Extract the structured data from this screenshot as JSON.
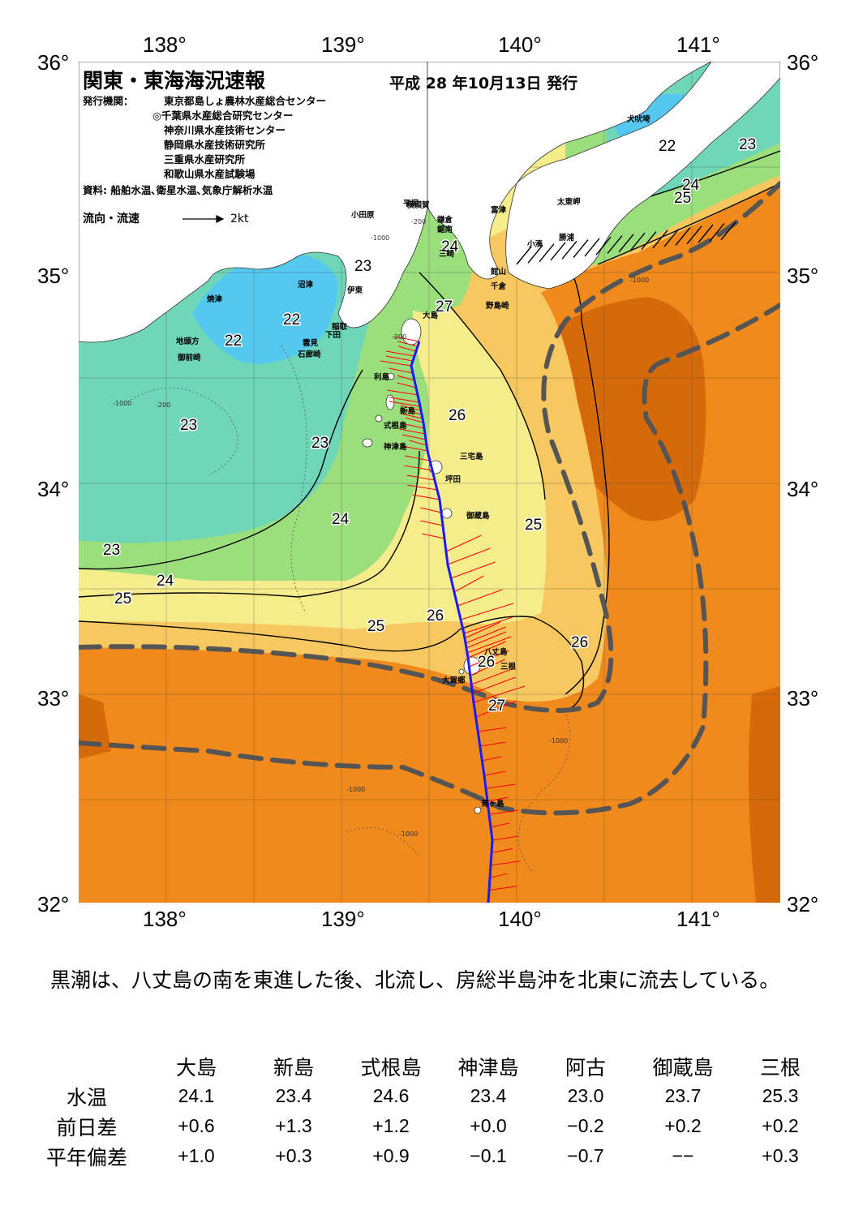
{
  "map": {
    "title": "関東・東海海況速報",
    "issue_date": "平成 28 年10月13日 発行",
    "publisher_label": "発行機関：",
    "publishers": [
      "東京都島しょ農林水産総合センター",
      "◎千葉県水産総合研究センター",
      "神奈川県水産技術センター",
      "静岡県水産技術研究所",
      "三重県水産研究所",
      "和歌山県水産試験場"
    ],
    "sources": "資料: 船舶水温､衛星水温､気象庁解析水温",
    "legend_label": "流向・流速",
    "legend_scale": "2kt",
    "lon_labels": [
      "138°",
      "139°",
      "140°",
      "141°"
    ],
    "lat_labels": [
      "36°",
      "35°",
      "34°",
      "33°",
      "32°"
    ],
    "place_names": [
      "犬吠埼",
      "太東岬",
      "勝浦",
      "小湊",
      "富津",
      "館山",
      "千倉",
      "野島崎",
      "横須賀",
      "平塚",
      "小田原",
      "鎌倉",
      "三崎",
      "鋸南",
      "沼津",
      "伊東",
      "稲取",
      "下田",
      "雲見",
      "石廊崎",
      "焼津",
      "地頭方",
      "御前崎",
      "大島",
      "利島",
      "新島",
      "式根島",
      "神津島",
      "三宅島",
      "坪田",
      "御蔵島",
      "八丈島",
      "三根",
      "大賀郷",
      "青ヶ島"
    ],
    "isotherm_labels": [
      "22",
      "23",
      "24",
      "25",
      "26",
      "27"
    ],
    "depth_labels": [
      "-200",
      "-1000"
    ],
    "colors": {
      "water_22": "#55c8f0",
      "water_23": "#70d6b8",
      "water_24": "#9adf7c",
      "water_25": "#f5ec8c",
      "water_26": "#f8c860",
      "water_27": "#f5a742",
      "water_warm": "#f08a1c",
      "water_hot": "#d66a0a",
      "land": "#ffffff",
      "kuroshio_axis": "#555555",
      "ship_track": "#1a1aff",
      "current_vectors": "#ff0000"
    }
  },
  "summary": "黒潮は、八丈島の南を東進した後、北流し、房総半島沖を北東に流去している。",
  "stats": {
    "columns": [
      "大島",
      "新島",
      "式根島",
      "神津島",
      "阿古",
      "御蔵島",
      "三根"
    ],
    "rows": [
      {
        "label": "水温",
        "values": [
          "24.1",
          "23.4",
          "24.6",
          "23.4",
          "23.0",
          "23.7",
          "25.3"
        ]
      },
      {
        "label": "前日差",
        "values": [
          "+0.6",
          "+1.3",
          "+1.2",
          "+0.0",
          "−0.2",
          "+0.2",
          "+0.2"
        ]
      },
      {
        "label": "平年偏差",
        "values": [
          "+1.0",
          "+0.3",
          "+0.9",
          "−0.1",
          "−0.7",
          "−−",
          "+0.3"
        ]
      }
    ]
  }
}
